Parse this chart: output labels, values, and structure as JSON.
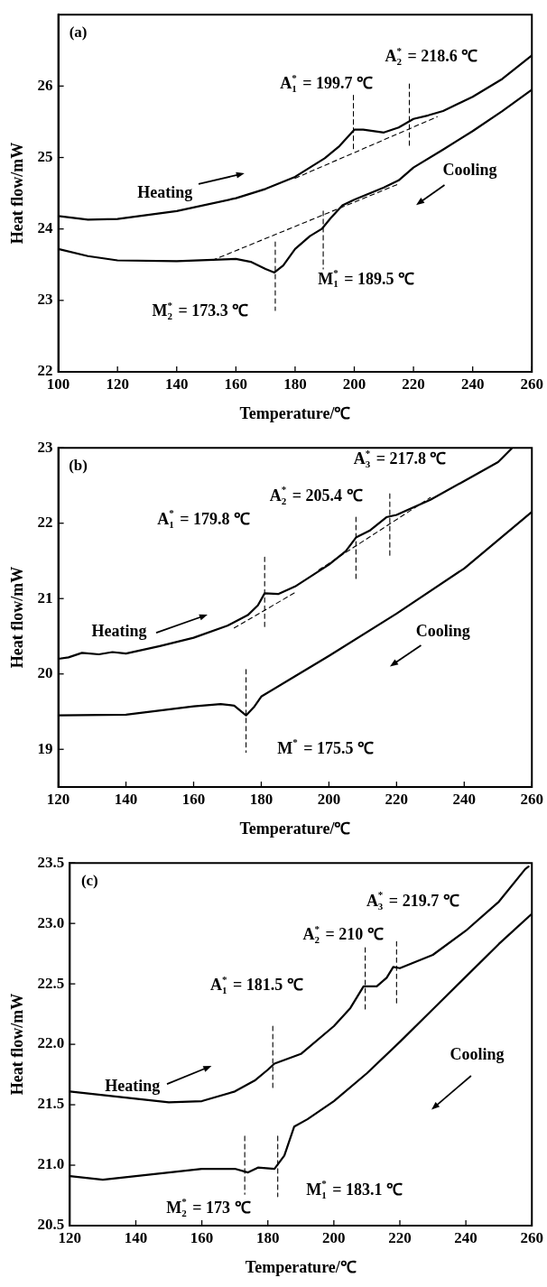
{
  "chart_data": [
    {
      "type": "line",
      "xlabel": "Temperature/℃",
      "ylabel": "Heat flow/mW",
      "xlim": [
        100,
        260
      ],
      "ylim": [
        22,
        27
      ],
      "xticks": [
        100,
        120,
        140,
        160,
        180,
        200,
        220,
        240,
        260
      ],
      "yticks": [
        22,
        23,
        24,
        25,
        26
      ],
      "annotations": [
        "(a)",
        "A$_{1}$$^{*}$ = 199.7 ℃",
        "A$_{2}$$^{*}$ = 218.6 ℃",
        "M$_{2}$$^{*}$ = 173.3 ℃",
        "M$_{1}$$^{*}$ = 189.5 ℃"
      ],
      "series": [
        {
          "name": "Heating",
          "color": "#000000",
          "line_style": "solid",
          "x": [
            100,
            110,
            120,
            140,
            160,
            170,
            180,
            190,
            195,
            200,
            203,
            210,
            215,
            220,
            225,
            230,
            240,
            250,
            260
          ],
          "values": [
            24.18,
            24.13,
            24.14,
            24.25,
            24.43,
            24.56,
            24.73,
            24.99,
            25.16,
            25.39,
            25.39,
            25.35,
            25.42,
            25.54,
            25.59,
            25.65,
            25.85,
            26.1,
            26.43
          ]
        },
        {
          "name": "Cooling",
          "color": "#000000",
          "line_style": "solid",
          "x": [
            100,
            110,
            120,
            140,
            160,
            165,
            170,
            173,
            176,
            180,
            185,
            189,
            192,
            196,
            200,
            210,
            215,
            220,
            230,
            240,
            250,
            260
          ],
          "values": [
            23.72,
            23.62,
            23.56,
            23.55,
            23.58,
            23.54,
            23.44,
            23.39,
            23.49,
            23.72,
            23.9,
            24.0,
            24.15,
            24.33,
            24.41,
            24.58,
            24.68,
            24.86,
            25.11,
            25.37,
            25.65,
            25.95
          ]
        },
        {
          "type": "line",
          "color": "#000000",
          "line_style": "dashed",
          "x": [
            180,
            228
          ],
          "values": [
            24.71,
            25.57
          ]
        },
        {
          "type": "line",
          "color": "#000000",
          "line_style": "dashed",
          "x": [
            152,
            215
          ],
          "values": [
            23.56,
            24.63
          ]
        },
        {
          "type": "line",
          "color": "#000000",
          "line_style": "dashed",
          "x": [
            199.7,
            199.7
          ],
          "values": [
            25.87,
            25.09
          ]
        },
        {
          "type": "line",
          "color": "#000000",
          "line_style": "dashed",
          "x": [
            218.6,
            218.6
          ],
          "values": [
            26.03,
            25.14
          ]
        },
        {
          "type": "line",
          "color": "#000000",
          "line_style": "dashed",
          "x": [
            173.3,
            173.3
          ],
          "values": [
            23.82,
            22.86
          ]
        },
        {
          "type": "line",
          "color": "#000000",
          "line_style": "dashed",
          "x": [
            189.5,
            189.5
          ],
          "values": [
            24.25,
            23.44
          ]
        }
      ]
    },
    {
      "type": "line",
      "xlabel": "Temperature/℃",
      "ylabel": "Heat flow/mW",
      "xlim": [
        120,
        260
      ],
      "ylim": [
        18.5,
        23
      ],
      "xticks": [
        120,
        140,
        160,
        180,
        200,
        220,
        240,
        260
      ],
      "yticks": [
        19,
        20,
        21,
        22,
        23
      ],
      "annotations": [
        "(b)",
        "A$_{1}$$^{*}$ = 179.8 ℃",
        "A$_{2}$$^{*}$ = 205.4 ℃",
        "A$_{3}$$^{*}$ = 217.8 ℃",
        "M$^{*}$ = 175.5 ℃"
      ],
      "series": [
        {
          "name": "Heating",
          "color": "#000000",
          "line_style": "solid",
          "x": [
            120,
            123,
            127,
            132,
            136,
            140,
            150,
            160,
            170,
            176,
            179,
            181,
            185,
            190,
            200,
            205,
            208,
            212,
            217,
            220,
            230,
            240,
            250,
            254
          ],
          "values": [
            20.2,
            20.22,
            20.28,
            20.26,
            20.29,
            20.27,
            20.37,
            20.48,
            20.64,
            20.78,
            20.91,
            21.07,
            21.06,
            21.16,
            21.45,
            21.63,
            21.81,
            21.9,
            22.08,
            22.11,
            22.31,
            22.56,
            22.81,
            22.99
          ]
        },
        {
          "name": "Cooling",
          "color": "#000000",
          "line_style": "solid",
          "x": [
            120,
            140,
            160,
            168,
            172,
            175.5,
            178,
            180,
            190,
            200,
            220,
            240,
            260
          ],
          "values": [
            19.45,
            19.46,
            19.57,
            19.6,
            19.58,
            19.45,
            19.57,
            19.7,
            19.97,
            20.24,
            20.8,
            21.4,
            22.15
          ]
        },
        {
          "type": "line",
          "color": "#000000",
          "line_style": "dashed",
          "x": [
            172,
            190
          ],
          "values": [
            20.61,
            21.08
          ]
        },
        {
          "type": "line",
          "color": "#000000",
          "line_style": "dashed",
          "x": [
            197,
            230
          ],
          "values": [
            21.38,
            22.34
          ]
        },
        {
          "type": "line",
          "color": "#000000",
          "line_style": "dashed",
          "x": [
            181,
            181
          ],
          "values": [
            21.55,
            20.6
          ]
        },
        {
          "type": "line",
          "color": "#000000",
          "line_style": "dashed",
          "x": [
            208,
            208
          ],
          "values": [
            22.08,
            21.22
          ]
        },
        {
          "type": "line",
          "color": "#000000",
          "line_style": "dashed",
          "x": [
            218,
            218
          ],
          "values": [
            22.39,
            21.54
          ]
        },
        {
          "type": "line",
          "color": "#000000",
          "line_style": "dashed",
          "x": [
            175.5,
            175.5
          ],
          "values": [
            20.06,
            18.96
          ]
        }
      ]
    },
    {
      "type": "line",
      "xlabel": "Temperature/℃",
      "ylabel": "Heat flow/mW",
      "xlim": [
        120,
        260
      ],
      "ylim": [
        20.5,
        23.5
      ],
      "xticks": [
        120,
        140,
        160,
        180,
        200,
        220,
        240,
        260
      ],
      "yticks": [
        {
          "value": 20.5,
          "label": "20.5"
        },
        {
          "value": 21,
          "label": "21.0"
        },
        {
          "value": 21.5,
          "label": "21.5"
        },
        {
          "value": 22,
          "label": "22.0"
        },
        {
          "value": 22.5,
          "label": "22.5"
        },
        {
          "value": 23,
          "label": "23.0"
        },
        {
          "value": 23.5,
          "label": "23.5"
        }
      ],
      "annotations": [
        "(c)",
        "A$_{1}$$^{*}$ = 181.5 ℃",
        "A$_{2}$$^{*}$ = 210 ℃",
        "A$_{3}$$^{*}$ = 219.7 ℃",
        "M$_{2}$$^{*}$ = 173 ℃",
        "M$_{1}$$^{*}$ = 183.1 ℃"
      ],
      "series": [
        {
          "name": "Heating",
          "color": "#000000",
          "line_style": "solid",
          "x": [
            120,
            130,
            140,
            150,
            160,
            170,
            176,
            180,
            182,
            190,
            200,
            205,
            209,
            213,
            216,
            218,
            220,
            230,
            240,
            250,
            258,
            259
          ],
          "values": [
            21.61,
            21.58,
            21.55,
            21.52,
            21.53,
            21.61,
            21.7,
            21.79,
            21.84,
            21.92,
            22.15,
            22.3,
            22.48,
            22.48,
            22.55,
            22.64,
            22.63,
            22.74,
            22.94,
            23.18,
            23.45,
            23.47
          ]
        },
        {
          "name": "Cooling",
          "color": "#000000",
          "line_style": "solid",
          "x": [
            120,
            130,
            150,
            160,
            170,
            174,
            177,
            182,
            185,
            188,
            192,
            200,
            210,
            220,
            230,
            240,
            250,
            260
          ],
          "values": [
            20.91,
            20.88,
            20.94,
            20.97,
            20.97,
            20.94,
            20.98,
            20.97,
            21.08,
            21.32,
            21.38,
            21.53,
            21.76,
            22.02,
            22.29,
            22.56,
            22.83,
            23.08
          ]
        },
        {
          "type": "line",
          "color": "#000000",
          "line_style": "dashed",
          "x": [
            181.5,
            181.5
          ],
          "values": [
            22.15,
            21.62
          ]
        },
        {
          "type": "line",
          "color": "#000000",
          "line_style": "dashed",
          "x": [
            209.5,
            209.5
          ],
          "values": [
            22.8,
            22.29
          ]
        },
        {
          "type": "line",
          "color": "#000000",
          "line_style": "dashed",
          "x": [
            219,
            219
          ],
          "values": [
            22.85,
            22.32
          ]
        },
        {
          "type": "line",
          "color": "#000000",
          "line_style": "dashed",
          "x": [
            173,
            173
          ],
          "values": [
            21.24,
            20.76
          ]
        },
        {
          "type": "line",
          "color": "#000000",
          "line_style": "dashed",
          "x": [
            183,
            183
          ],
          "values": [
            21.24,
            20.74
          ]
        }
      ]
    }
  ]
}
